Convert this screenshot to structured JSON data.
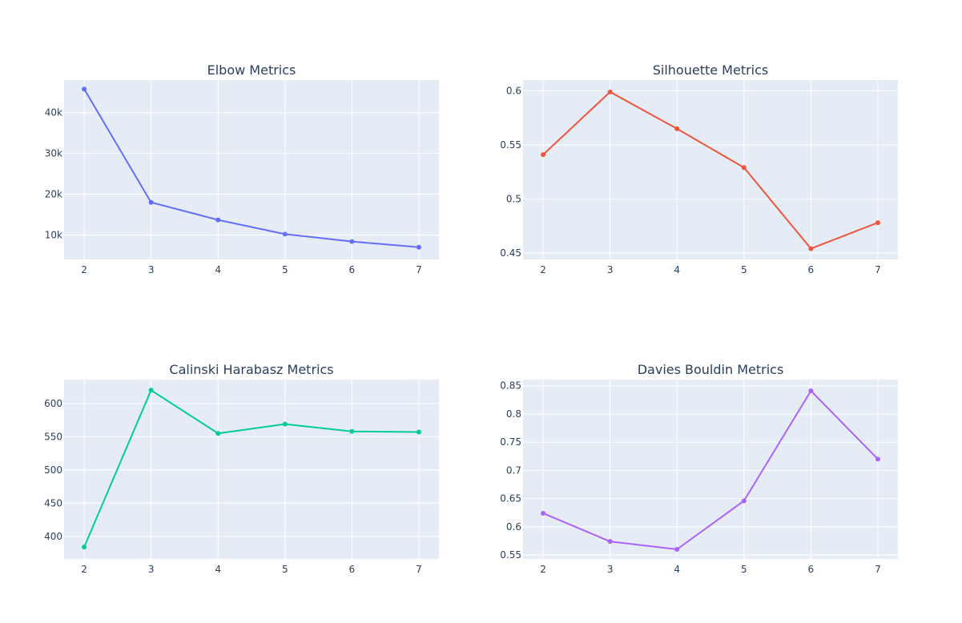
{
  "chart_data": [
    {
      "type": "line",
      "title": "Elbow Metrics",
      "x": [
        2,
        3,
        4,
        5,
        6,
        7
      ],
      "values": [
        45800,
        18000,
        13700,
        10200,
        8400,
        7000
      ],
      "xlim": [
        1.7,
        7.3
      ],
      "ylim": [
        4000,
        48000
      ],
      "yticks": [
        10000,
        20000,
        30000,
        40000
      ],
      "ytick_labels": [
        "10k",
        "20k",
        "30k",
        "40k"
      ],
      "color": "#636efa"
    },
    {
      "type": "line",
      "title": "Silhouette Metrics",
      "x": [
        2,
        3,
        4,
        5,
        6,
        7
      ],
      "values": [
        0.541,
        0.599,
        0.565,
        0.529,
        0.454,
        0.478
      ],
      "xlim": [
        1.7,
        7.3
      ],
      "ylim": [
        0.444,
        0.61
      ],
      "yticks": [
        0.45,
        0.5,
        0.55,
        0.6
      ],
      "ytick_labels": [
        "0.45",
        "0.5",
        "0.55",
        "0.6"
      ],
      "color": "#ef553b"
    },
    {
      "type": "line",
      "title": "Calinski Harabasz Metrics",
      "x": [
        2,
        3,
        4,
        5,
        6,
        7
      ],
      "values": [
        384,
        620,
        555,
        569,
        558,
        557
      ],
      "xlim": [
        1.7,
        7.3
      ],
      "ylim": [
        366,
        636
      ],
      "yticks": [
        400,
        450,
        500,
        550,
        600
      ],
      "ytick_labels": [
        "400",
        "450",
        "500",
        "550",
        "600"
      ],
      "color": "#00cc96"
    },
    {
      "type": "line",
      "title": "Davies Bouldin Metrics",
      "x": [
        2,
        3,
        4,
        5,
        6,
        7
      ],
      "values": [
        0.624,
        0.574,
        0.56,
        0.646,
        0.841,
        0.72
      ],
      "xlim": [
        1.7,
        7.3
      ],
      "ylim": [
        0.543,
        0.861
      ],
      "yticks": [
        0.55,
        0.6,
        0.65,
        0.7,
        0.75,
        0.8,
        0.85
      ],
      "ytick_labels": [
        "0.55",
        "0.6",
        "0.65",
        "0.7",
        "0.75",
        "0.8",
        "0.85"
      ],
      "color": "#ab63fa"
    }
  ]
}
